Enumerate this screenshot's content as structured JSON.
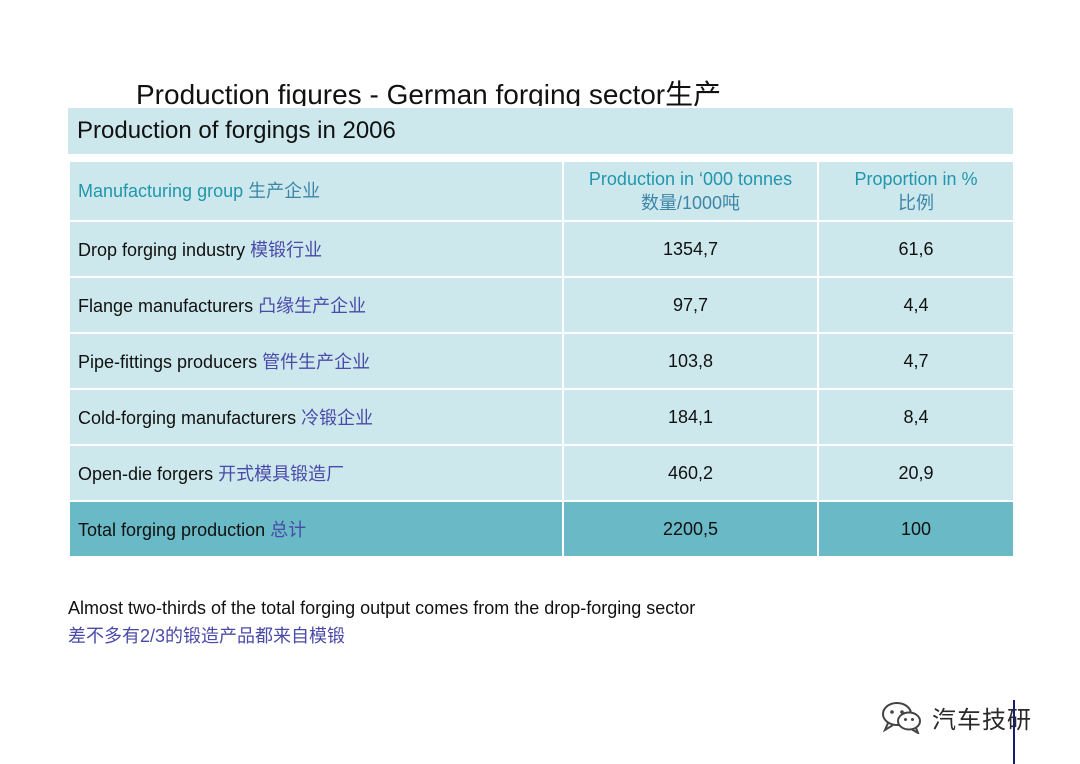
{
  "slide": {
    "title_en": "Production figures - German forging sector",
    "title_zh": "生产"
  },
  "table": {
    "caption": "Production of forgings in 2006",
    "header": {
      "group_en": "Manufacturing group",
      "group_zh": "生产企业",
      "production_en": "Production in ‘000 tonnes",
      "production_zh": "数量/1000吨",
      "proportion_en": "Proportion in %",
      "proportion_zh": "比例"
    },
    "rows": [
      {
        "group_en": "Drop forging industry",
        "group_zh": "模锻行业",
        "production": "1354,7",
        "proportion": "61,6"
      },
      {
        "group_en": "Flange manufacturers",
        "group_zh": "凸缘生产企业",
        "production": "97,7",
        "proportion": "4,4"
      },
      {
        "group_en": "Pipe-fittings producers",
        "group_zh": "管件生产企业",
        "production": "103,8",
        "proportion": "4,7"
      },
      {
        "group_en": "Cold-forging manufacturers",
        "group_zh": "冷锻企业",
        "production": "184,1",
        "proportion": "8,4"
      },
      {
        "group_en": "Open-die forgers",
        "group_zh": "开式模具锻造厂",
        "production": "460,2",
        "proportion": "20,9"
      }
    ],
    "total": {
      "group_en": "Total forging production",
      "group_zh": "总计",
      "production": "2200,5",
      "proportion": "100"
    },
    "colors": {
      "cell": "#cde8ec",
      "total": "#69b9c6",
      "header_text": "#2196ad",
      "zh_text": "#4a4aa8"
    }
  },
  "footnote": {
    "en": "Almost two-thirds of the total forging output comes from the drop-forging sector",
    "zh": "差不多有2/3的锻造产品都来自模锻"
  },
  "watermark": {
    "icon": "wechat-icon",
    "text": "汽车技研"
  }
}
